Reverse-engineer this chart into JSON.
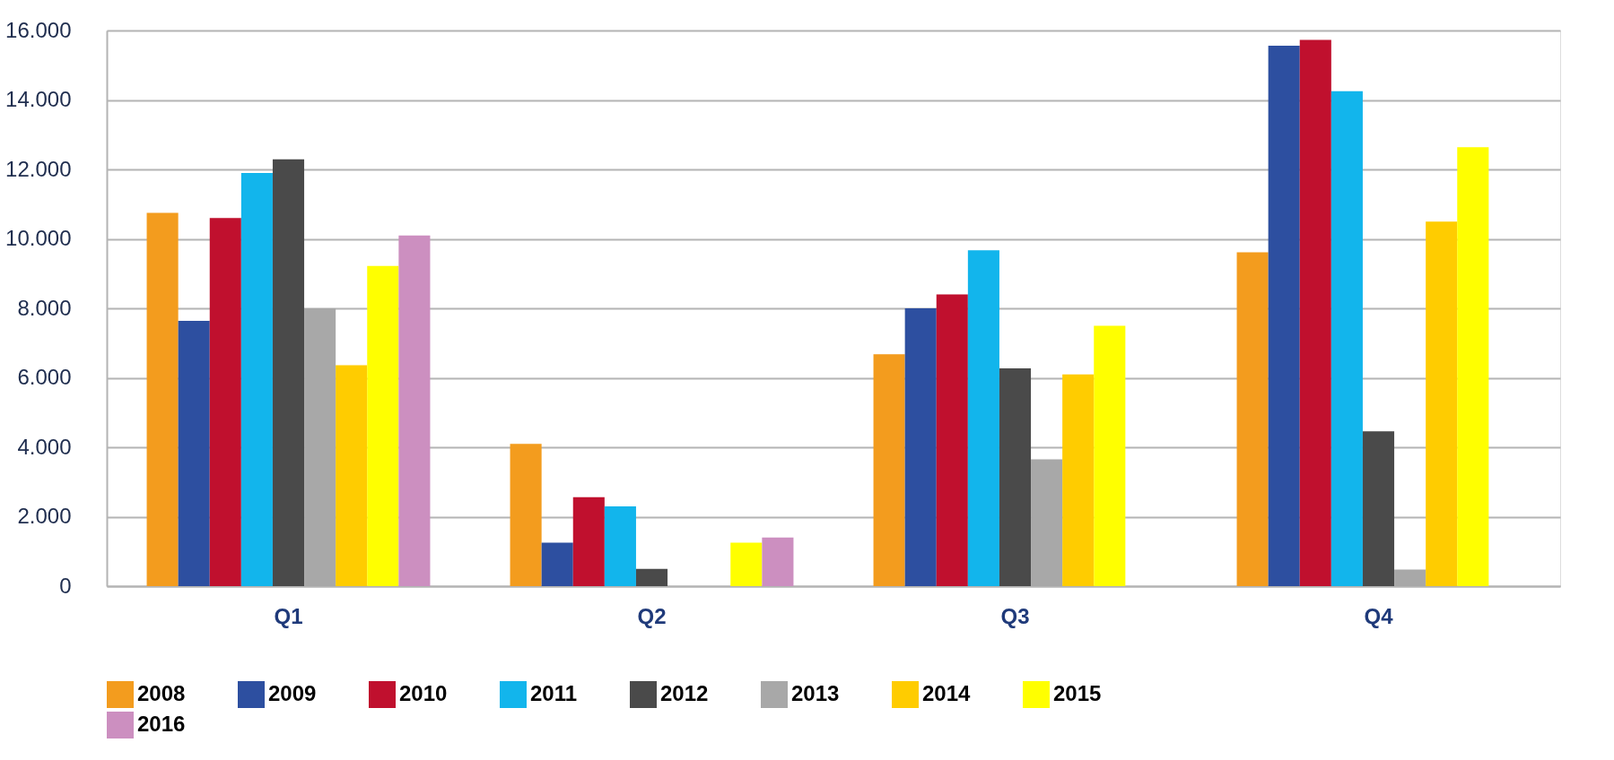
{
  "chart_data": {
    "type": "bar",
    "categories": [
      "Q1",
      "Q2",
      "Q3",
      "Q4"
    ],
    "series": [
      {
        "name": "2008",
        "color": "#f39c1e",
        "values": [
          10750,
          4100,
          6680,
          9610
        ]
      },
      {
        "name": "2009",
        "color": "#2d4fa0",
        "values": [
          7640,
          1250,
          8000,
          15560
        ]
      },
      {
        "name": "2010",
        "color": "#c0102e",
        "values": [
          10600,
          2560,
          8400,
          15730
        ]
      },
      {
        "name": "2011",
        "color": "#12b5ec",
        "values": [
          11900,
          2300,
          9670,
          14250
        ]
      },
      {
        "name": "2012",
        "color": "#4a4a4a",
        "values": [
          12290,
          500,
          6270,
          4460
        ]
      },
      {
        "name": "2013",
        "color": "#a8a8a8",
        "values": [
          8000,
          null,
          3650,
          480
        ]
      },
      {
        "name": "2014",
        "color": "#ffcc00",
        "values": [
          6360,
          null,
          6100,
          10500
        ]
      },
      {
        "name": "2015",
        "color": "#ffff00",
        "values": [
          9220,
          1250,
          7500,
          12640
        ]
      },
      {
        "name": "2016",
        "color": "#cc8fc0",
        "values": [
          10100,
          1400,
          null,
          null
        ]
      }
    ],
    "ylim": [
      0,
      16000
    ],
    "yticks": [
      0,
      {
        "value": 2000,
        "label": "2.000"
      },
      {
        "value": 4000,
        "label": "4.000"
      },
      {
        "value": 6000,
        "label": "6.000"
      },
      {
        "value": 8000,
        "label": "8.000"
      },
      {
        "value": 10000,
        "label": "10.000"
      },
      {
        "value": 12000,
        "label": "12.000"
      },
      {
        "value": 14000,
        "label": "14.000"
      },
      {
        "value": 16000,
        "label": "16.000"
      }
    ],
    "grid": "y",
    "legend": "bottom"
  }
}
